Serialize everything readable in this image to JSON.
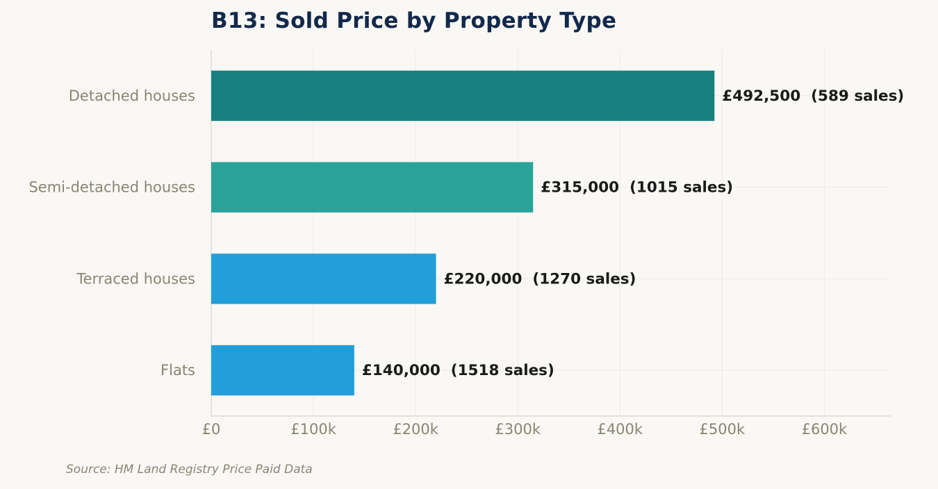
{
  "chart_data": {
    "type": "bar",
    "orientation": "horizontal",
    "title": "B13: Sold Price by Property Type",
    "categories": [
      "Detached houses",
      "Semi-detached houses",
      "Terraced houses",
      "Flats"
    ],
    "values": [
      492500,
      315000,
      220000,
      140000
    ],
    "sales": [
      589,
      1015,
      1270,
      1518
    ],
    "data_labels": [
      "£492,500  (589 sales)",
      "£315,000  (1015 sales)",
      "£220,000  (1270 sales)",
      "£140,000  (1518 sales)"
    ],
    "bar_colors": [
      "#178080",
      "#2aa39b",
      "#229ed9",
      "#229ed9"
    ],
    "x_ticks": [
      0,
      100000,
      200000,
      300000,
      400000,
      500000,
      600000
    ],
    "x_tick_labels": [
      "£0",
      "£100k",
      "£200k",
      "£300k",
      "£400k",
      "£500k",
      "£600k"
    ],
    "xlim": [
      0,
      665000
    ],
    "xlabel": "",
    "ylabel": "",
    "grid": true,
    "legend": "none"
  },
  "source": "Source: HM Land Registry Price Paid Data",
  "colors": {
    "background": "#f9f8f4",
    "title": "#13294b",
    "label_text": "#1a1a1a",
    "muted_text": "#8a8474",
    "grid": "#ecebe5",
    "axis": "#d6d4cb"
  }
}
